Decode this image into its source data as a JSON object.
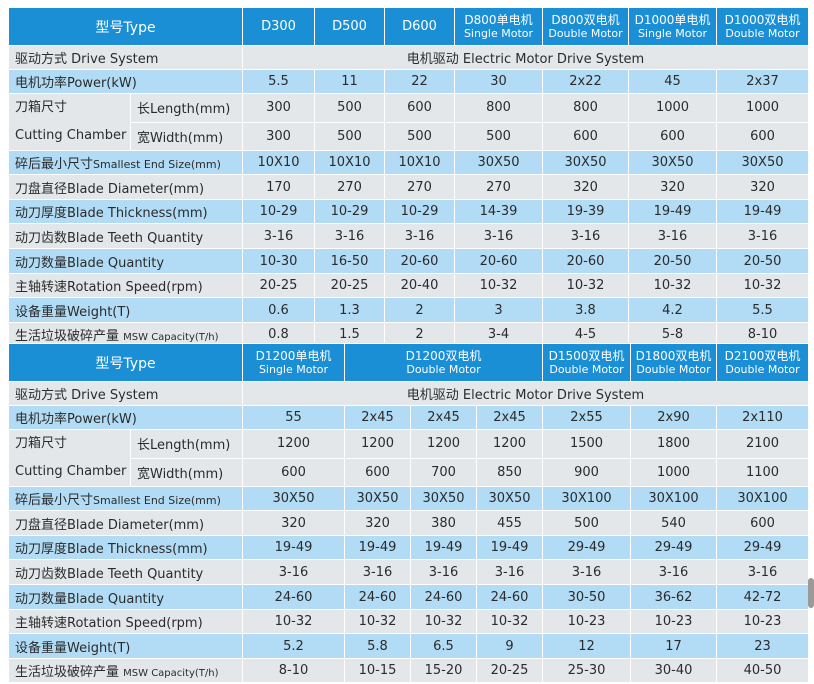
{
  "labels": {
    "type": "型号Type",
    "drive": "驱动方式 Drive System",
    "drive_value": "电机驱动 Electric Motor Drive System",
    "power": "电机功率Power(kW)",
    "chamber_cn": "刀箱尺寸",
    "chamber_en": "Cutting Chamber",
    "length": "长Length(mm)",
    "width": "宽Width(mm)",
    "end_size_cn": "碎后最小尺寸",
    "end_size_en": "Smallest End Size(mm)",
    "blade_diameter": "刀盘直径Blade  Diameter(mm)",
    "blade_thickness": "动刀厚度Blade  Thickness(mm)",
    "teeth": "动刀齿数Blade Teeth Quantity",
    "blade_qty": "动刀数量Blade  Quantity",
    "speed": "主轴转速Rotation Speed(rpm)",
    "weight": "设备重量Weight(T)",
    "msw_cn": "生活垃圾破碎产量",
    "msw_en": "MSW Capacity(T/h)"
  },
  "table1": {
    "models": [
      {
        "cn": "D300",
        "en": ""
      },
      {
        "cn": "D500",
        "en": ""
      },
      {
        "cn": "D600",
        "en": ""
      },
      {
        "cn": "D800单电机",
        "en": "Single Motor"
      },
      {
        "cn": "D800双电机",
        "en": "Double Motor"
      },
      {
        "cn": "D1000单电机",
        "en": "Single Motor"
      },
      {
        "cn": "D1000双电机",
        "en": "Double Motor"
      }
    ],
    "power": [
      "5.5",
      "11",
      "22",
      "30",
      "2x22",
      "45",
      "2x37"
    ],
    "length": [
      "300",
      "500",
      "600",
      "800",
      "800",
      "1000",
      "1000"
    ],
    "width": [
      "300",
      "500",
      "500",
      "500",
      "600",
      "600",
      "600"
    ],
    "end_size": [
      "10X10",
      "10X10",
      "10X10",
      "30X50",
      "30X50",
      "30X50",
      "30X50"
    ],
    "blade_diameter": [
      "170",
      "270",
      "270",
      "270",
      "320",
      "320",
      "320"
    ],
    "blade_thickness": [
      "10-29",
      "10-29",
      "10-29",
      "14-39",
      "19-39",
      "19-49",
      "19-49"
    ],
    "teeth": [
      "3-16",
      "3-16",
      "3-16",
      "3-16",
      "3-16",
      "3-16",
      "3-16"
    ],
    "blade_qty": [
      "10-30",
      "16-50",
      "20-60",
      "20-60",
      "20-60",
      "20-50",
      "20-50"
    ],
    "speed": [
      "20-25",
      "20-25",
      "20-40",
      "10-32",
      "10-32",
      "10-32",
      "10-32"
    ],
    "weight": [
      "0.6",
      "1.3",
      "2",
      "3",
      "3.8",
      "4.2",
      "5.5"
    ],
    "msw": [
      "0.8",
      "1.5",
      "2",
      "3-4",
      "4-5",
      "5-8",
      "8-10"
    ]
  },
  "table2": {
    "models": [
      {
        "cn": "D1200单电机",
        "en": "Single Motor"
      },
      {
        "cn": "D1200双电机",
        "en": "Double Motor"
      },
      {
        "cn": "D1500双电机",
        "en": "Double Motor"
      },
      {
        "cn": "D1800双电机",
        "en": "Double Motor"
      },
      {
        "cn": "D2100双电机",
        "en": "Double Motor"
      }
    ],
    "power": [
      "55",
      "2x45",
      "2x45",
      "2x45",
      "2x55",
      "2x90",
      "2x110"
    ],
    "length": [
      "1200",
      "1200",
      "1200",
      "1200",
      "1500",
      "1800",
      "2100"
    ],
    "width": [
      "600",
      "600",
      "700",
      "850",
      "900",
      "1000",
      "1100"
    ],
    "end_size": [
      "30X50",
      "30X50",
      "30X50",
      "30X50",
      "30X100",
      "30X100",
      "30X100"
    ],
    "blade_diameter": [
      "320",
      "320",
      "380",
      "455",
      "500",
      "540",
      "600"
    ],
    "blade_thickness": [
      "19-49",
      "19-49",
      "19-49",
      "19-49",
      "29-49",
      "29-49",
      "29-49"
    ],
    "teeth": [
      "3-16",
      "3-16",
      "3-16",
      "3-16",
      "3-16",
      "3-16",
      "3-16"
    ],
    "blade_qty": [
      "24-60",
      "24-60",
      "24-60",
      "24-60",
      "30-50",
      "36-62",
      "42-72"
    ],
    "speed": [
      "10-32",
      "10-32",
      "10-32",
      "10-32",
      "10-23",
      "10-23",
      "10-23"
    ],
    "weight": [
      "5.2",
      "5.8",
      "6.5",
      "9",
      "12",
      "17",
      "23"
    ],
    "msw": [
      "8-10",
      "10-15",
      "15-20",
      "20-25",
      "25-30",
      "30-40",
      "40-50"
    ]
  },
  "colors": {
    "header": "#1a8fd6",
    "gray_row": "#e4e7ea",
    "blue_row": "#b2dcf5"
  }
}
